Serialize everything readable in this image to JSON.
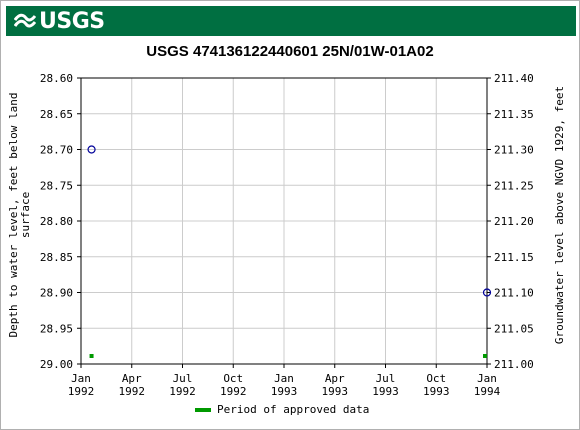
{
  "header": {
    "logo_text": "USGS",
    "brand_color": "#006f41"
  },
  "chart_data": {
    "type": "scatter",
    "title": "USGS 474136122440601 25N/01W-01A02",
    "ylabel_left": [
      "Depth to water level, feet below land",
      "surface"
    ],
    "ylabel_right": "Groundwater level above NGVD 1929, feet",
    "y_left_range": [
      28.6,
      29.0
    ],
    "y_left_inverted": true,
    "y_right_range": [
      211.0,
      211.4
    ],
    "y_left_ticks": [
      "28.60",
      "28.65",
      "28.70",
      "28.75",
      "28.80",
      "28.85",
      "28.90",
      "28.95",
      "29.00"
    ],
    "y_right_ticks": [
      "211.40",
      "211.35",
      "211.30",
      "211.25",
      "211.20",
      "211.15",
      "211.10",
      "211.05",
      "211.00"
    ],
    "x_ticks": [
      {
        "month": "Jan",
        "year": "1992"
      },
      {
        "month": "Apr",
        "year": "1992"
      },
      {
        "month": "Jul",
        "year": "1992"
      },
      {
        "month": "Oct",
        "year": "1992"
      },
      {
        "month": "Jan",
        "year": "1993"
      },
      {
        "month": "Apr",
        "year": "1993"
      },
      {
        "month": "Jul",
        "year": "1993"
      },
      {
        "month": "Oct",
        "year": "1993"
      },
      {
        "month": "Jan",
        "year": "1994"
      }
    ],
    "x_range": [
      "1992-01",
      "1994-01"
    ],
    "grid": true,
    "series": [
      {
        "marker": "open-circle",
        "color": "#000099",
        "points": [
          {
            "x": "1992-01-20",
            "y": 28.7
          },
          {
            "x": "1994-01-01",
            "y": 28.9
          }
        ]
      }
    ],
    "approved_periods": [
      {
        "x": "1992-01-20"
      },
      {
        "x": "1994-01-01"
      }
    ],
    "approved_color": "#009900",
    "legend": {
      "label": "Period of approved data",
      "placement": "bottom"
    }
  }
}
